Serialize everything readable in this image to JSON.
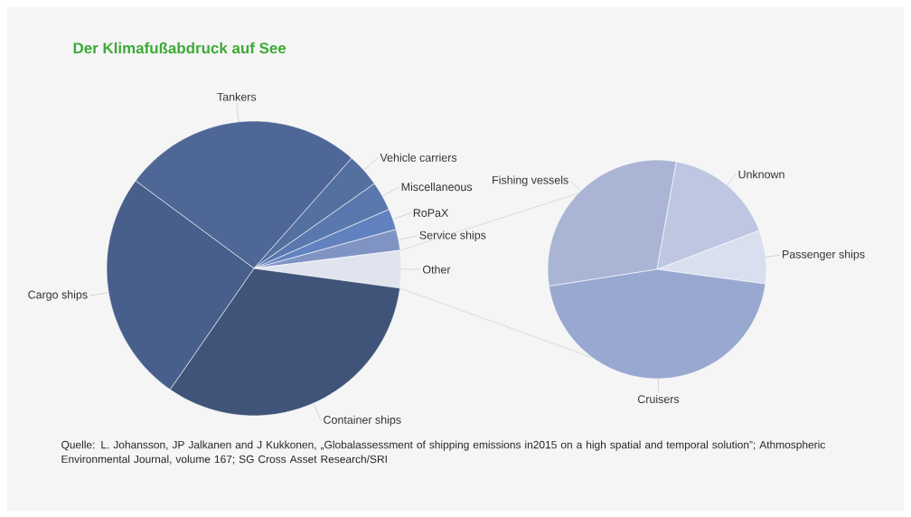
{
  "chart_data": [
    {
      "type": "pie",
      "title": "Der Klimafußabdruck auf See",
      "categories": [
        "Tankers",
        "Vehicle carriers",
        "Miscellaneous",
        "RoPaX",
        "Service ships",
        "Other",
        "Container ships",
        "Cargo ships"
      ],
      "values": [
        26.4,
        3.7,
        3.2,
        2.3,
        2.3,
        4.1,
        32.5,
        25.5
      ],
      "colors": [
        "#4f6796",
        "#53709f",
        "#5a78ad",
        "#6282bf",
        "#8094c3",
        "#dfe4ee",
        "#3f5478",
        "#485e8b"
      ],
      "annotations": [
        "Quelle: L. Johansson, JP Jalkanen and J Kukkonen, „Globalassessment of shipping emissions in2015 on a high spatial and temporal solution”; Athmospheric Environmental Journal, volume 167; SG Cross Asset Research/SRI"
      ]
    },
    {
      "type": "pie",
      "categories": [
        "Fishing vessels",
        "Unknown",
        "Passenger ships",
        "Cruisers"
      ],
      "values": [
        30.3,
        16.4,
        7.9,
        45.4
      ],
      "colors": [
        "#aab5d5",
        "#bec7e1",
        "#d9dfee",
        "#98a8d0"
      ]
    }
  ]
}
